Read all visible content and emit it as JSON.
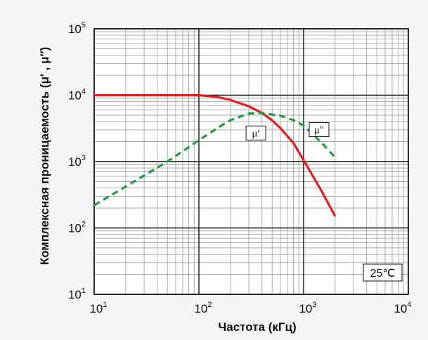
{
  "chart_data": {
    "type": "line",
    "xlabel": "Частота (кГц)",
    "ylabel": "Комплексная проницаемость (μ′ , μ″)",
    "x_scale": "log",
    "y_scale": "log",
    "xlim": [
      10,
      10000
    ],
    "ylim": [
      10,
      100000
    ],
    "x_ticks": [
      10,
      100,
      1000,
      10000
    ],
    "y_ticks": [
      10,
      100,
      1000,
      10000,
      100000
    ],
    "grid": true,
    "annotation": "25℃",
    "series": [
      {
        "name": "μ′",
        "color": "#e02020",
        "style": "solid",
        "x": [
          10,
          50,
          100,
          150,
          200,
          300,
          400,
          500,
          600,
          800,
          1000,
          1500,
          2000
        ],
        "y": [
          10000,
          10000,
          10000,
          9400,
          8500,
          6800,
          5400,
          4200,
          3200,
          1900,
          1050,
          350,
          150
        ]
      },
      {
        "name": "μ″",
        "color": "#1e9e40",
        "style": "dashed",
        "x": [
          10,
          20,
          50,
          80,
          100,
          150,
          200,
          300,
          400,
          600,
          800,
          1000,
          1500,
          2000
        ],
        "y": [
          220,
          420,
          1000,
          1650,
          2100,
          3200,
          4200,
          5300,
          5400,
          4900,
          4200,
          3500,
          1900,
          1150
        ]
      }
    ]
  }
}
